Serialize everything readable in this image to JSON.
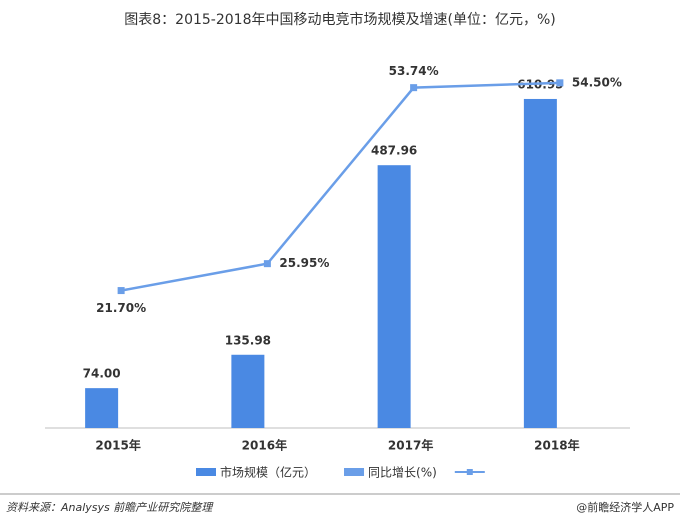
{
  "chart_data": {
    "type": "bar_line",
    "title": "图表8：2015-2018年中国移动电竞市场规模及增速(单位：亿元，%)",
    "categories": [
      "2015年",
      "2016年",
      "2017年",
      "2018年"
    ],
    "series": [
      {
        "name": "市场规模（亿元）",
        "type": "bar",
        "color": "#4a89e3",
        "values": [
          74.0,
          135.98,
          487.96,
          610.95
        ],
        "value_labels": [
          "74.00",
          "135.98",
          "487.96",
          "610.95"
        ]
      },
      {
        "name": "同比增长(%)",
        "type": "line",
        "axis": "y2",
        "color": "#6a9ee8",
        "values": [
          21.7,
          25.95,
          53.74,
          54.5
        ],
        "value_labels": [
          "21.70%",
          "25.95%",
          "53.74%",
          "54.50%"
        ]
      }
    ],
    "ylim": [
      0,
      700
    ],
    "y2lim": [
      0,
      60
    ],
    "source": "资料来源：Analysys 前瞻产业研究院整理",
    "credit": "@前瞻经济学人APP"
  }
}
